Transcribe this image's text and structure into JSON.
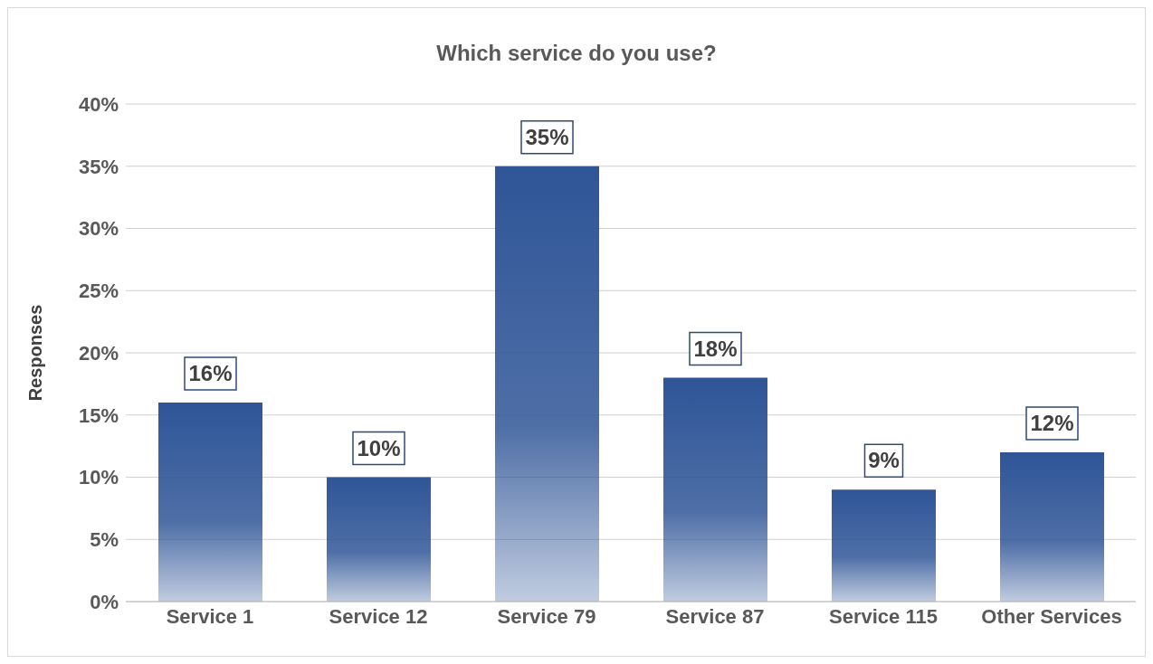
{
  "chart_data": {
    "type": "bar",
    "title": "Which service do you use?",
    "ylabel": "Responses",
    "categories": [
      "Service 1",
      "Service 12",
      "Service 79",
      "Service 87",
      "Service 115",
      "Other Services"
    ],
    "values": [
      16,
      10,
      35,
      18,
      9,
      12
    ],
    "value_labels": [
      "16%",
      "10%",
      "35%",
      "18%",
      "9%",
      "12%"
    ],
    "color": "#2f5597",
    "ylim": [
      0,
      40
    ],
    "yticks": [
      {
        "value": 0,
        "label": "0%"
      },
      {
        "value": 5,
        "label": "5%"
      },
      {
        "value": 10,
        "label": "10%"
      },
      {
        "value": 15,
        "label": "15%"
      },
      {
        "value": 20,
        "label": "20%"
      },
      {
        "value": 25,
        "label": "25%"
      },
      {
        "value": 30,
        "label": "30%"
      },
      {
        "value": 35,
        "label": "35%"
      },
      {
        "value": 40,
        "label": "40%"
      }
    ],
    "grid": "y",
    "legend": false
  }
}
